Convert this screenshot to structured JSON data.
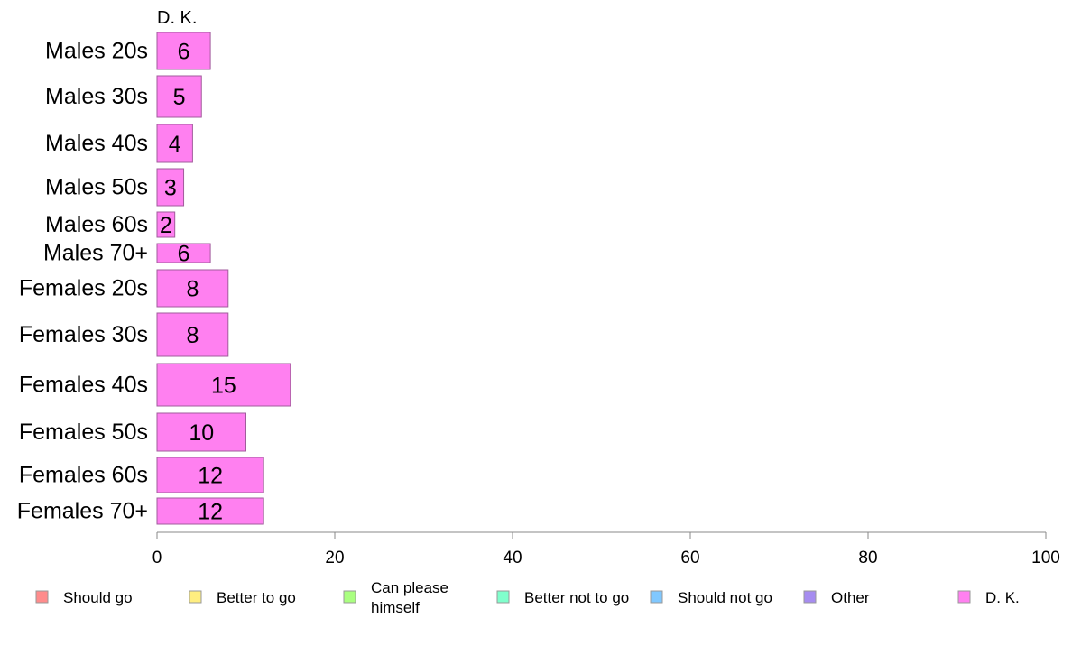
{
  "chart_data": {
    "type": "bar",
    "orientation": "horizontal",
    "panel_label": "D. K.",
    "categories": [
      "Males 20s",
      "Males 30s",
      "Males 40s",
      "Males 50s",
      "Males 60s",
      "Males 70+",
      "Females 20s",
      "Females 30s",
      "Females 40s",
      "Females 50s",
      "Females 60s",
      "Females 70+"
    ],
    "series": [
      {
        "name": "D. K.",
        "values": [
          6,
          5,
          4,
          3,
          2,
          6,
          8,
          8,
          15,
          10,
          12,
          12
        ]
      }
    ],
    "xlim": [
      0,
      100
    ],
    "xticks": [
      "0",
      "20",
      "40",
      "60",
      "80",
      "100"
    ],
    "xtick_values": [
      0,
      20,
      40,
      60,
      80,
      100
    ],
    "grid": false,
    "legend_position": "bottom",
    "legend": [
      {
        "label": "Should go",
        "color": "#ff8c8c"
      },
      {
        "label": "Better to go",
        "color": "#ffee80"
      },
      {
        "label": "Can please himself",
        "color": "#aaff80"
      },
      {
        "label": "Better not to go",
        "color": "#80ffcc"
      },
      {
        "label": "Should not go",
        "color": "#80c8ff"
      },
      {
        "label": "Other",
        "color": "#a68cf0"
      },
      {
        "label": "D. K.",
        "color": "#ff80f0"
      }
    ],
    "bar_color": "#ff80f0"
  }
}
